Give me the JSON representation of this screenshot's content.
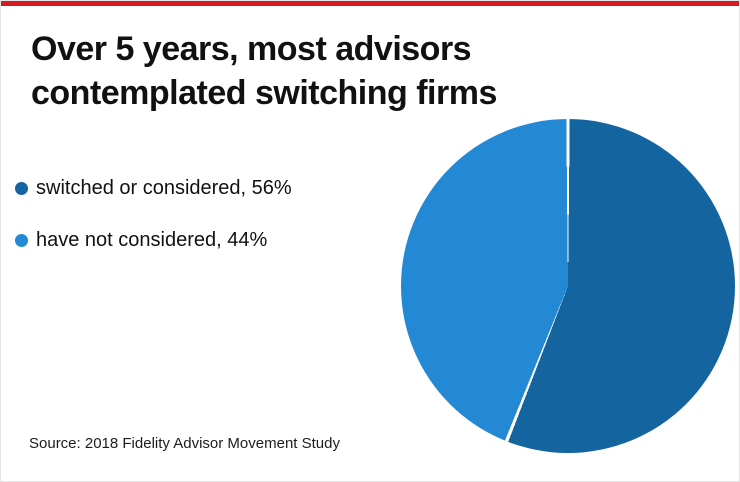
{
  "accent_bar_color": "#d71920",
  "title": {
    "line1": "Over 5 years, most advisors",
    "line2": "contemplated switching firms"
  },
  "legend": {
    "items": [
      {
        "label": "switched or considered, 56%",
        "color": "#14659f"
      },
      {
        "label": "have not considered, 44%",
        "color": "#2489d5"
      }
    ]
  },
  "source_text": "Source: 2018 Fidelity Advisor Movement Study",
  "chart_data": {
    "type": "pie",
    "title": "Over 5 years, most advisors contemplated switching firms",
    "slices": [
      {
        "label": "switched or considered",
        "value": 56,
        "color": "#14659f"
      },
      {
        "label": "have not considered",
        "value": 44,
        "color": "#2489d5"
      }
    ],
    "start_angle_deg": 0,
    "direction": "clockwise",
    "separator_color": "#ffffff",
    "legend_position": "left",
    "source": "Source: 2018 Fidelity Advisor Movement Study"
  }
}
